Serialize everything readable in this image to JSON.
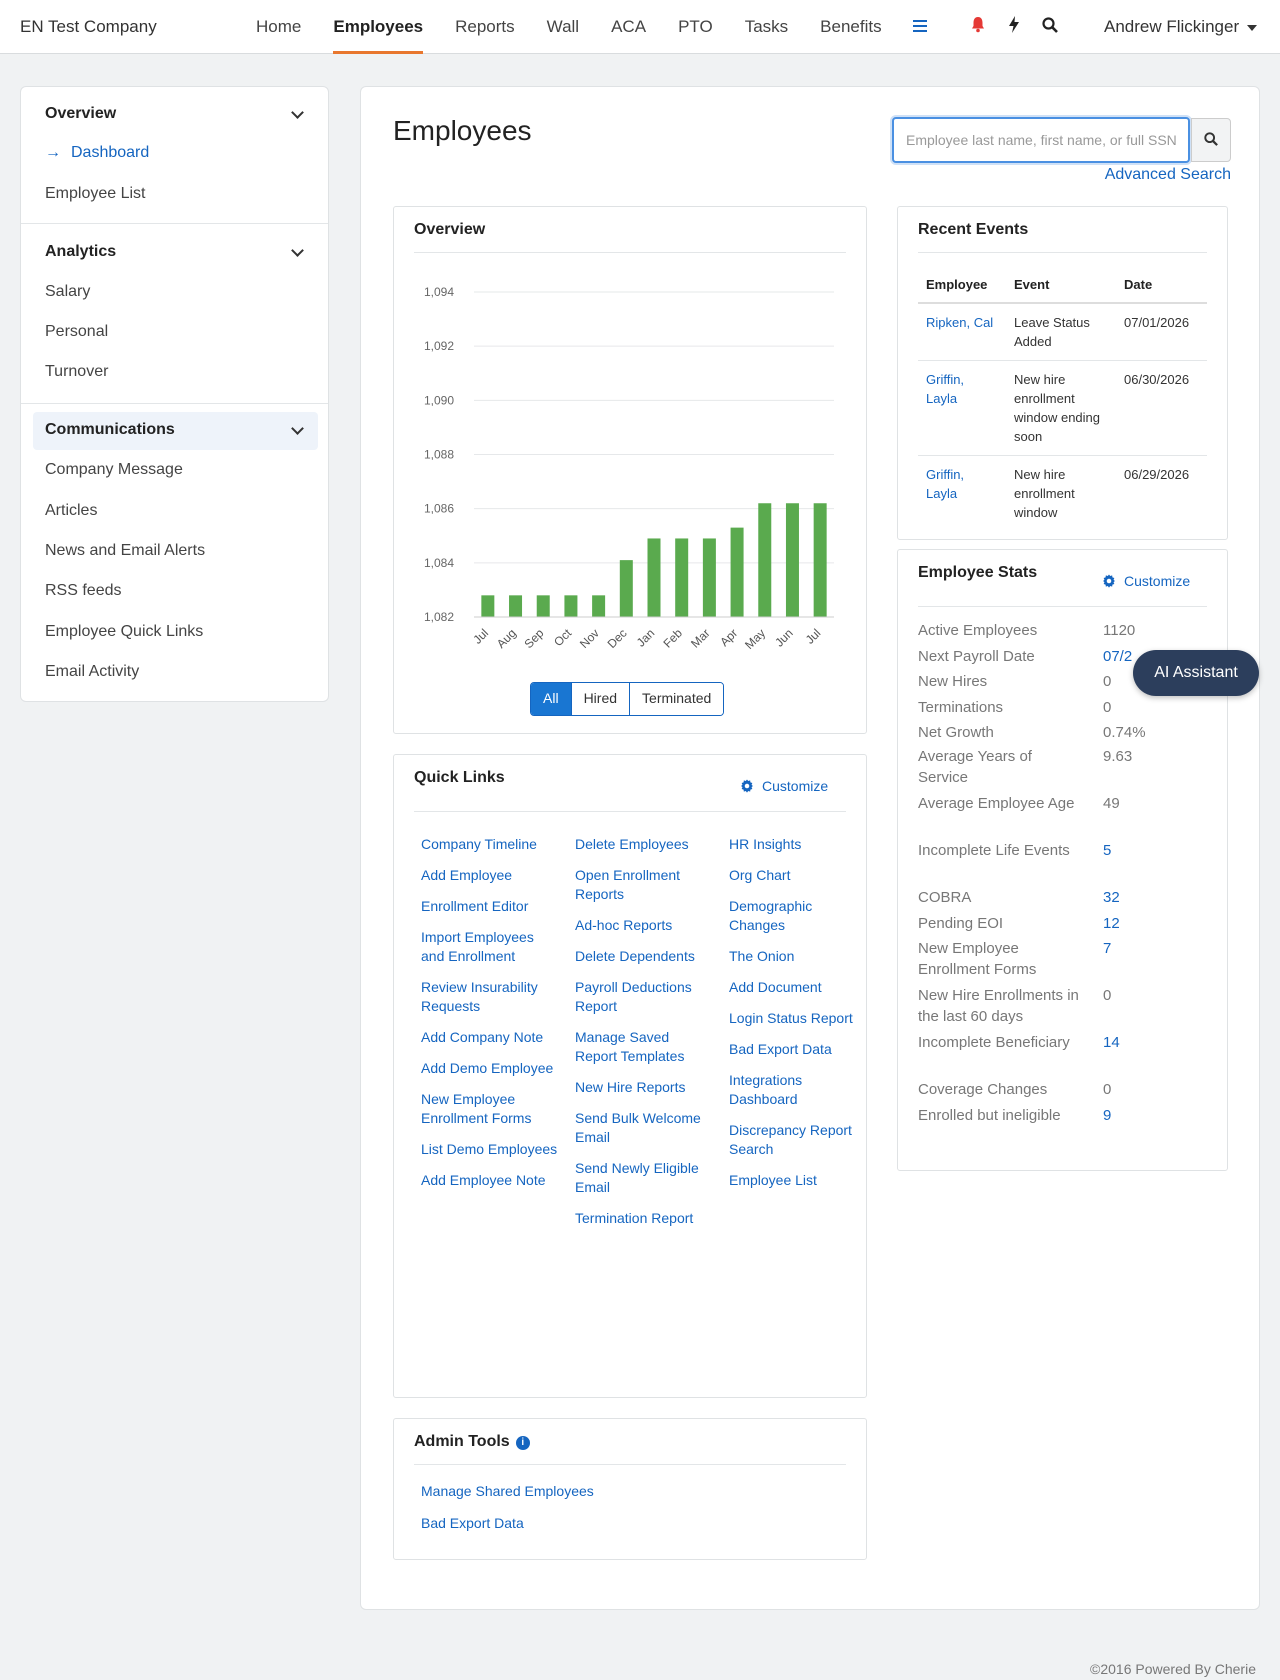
{
  "topnav": {
    "brand": "EN Test Company",
    "links": [
      "Home",
      "Employees",
      "Reports",
      "Wall",
      "ACA",
      "PTO",
      "Tasks",
      "Benefits"
    ],
    "active": "Employees",
    "menu_icon": "hamburger-icon",
    "icons": [
      "bell-icon",
      "bolt-icon",
      "search-icon"
    ],
    "user": "Andrew Flickinger"
  },
  "sidebar": {
    "sections": [
      {
        "title": "Overview",
        "items": [
          "Dashboard",
          "Employee List"
        ]
      },
      {
        "title": "Analytics",
        "items": [
          "Salary",
          "Personal",
          "Turnover"
        ]
      },
      {
        "title": "Communications",
        "items": [
          "Company Message",
          "Articles",
          "News and Email Alerts",
          "RSS feeds",
          "Employee Quick Links",
          "Email Activity"
        ]
      }
    ],
    "current_item": "Dashboard"
  },
  "page": {
    "title": "Employees",
    "search_placeholder": "Employee last name, first name, or full SSN",
    "advanced_search": "Advanced Search"
  },
  "overview_card": {
    "title": "Overview",
    "toggles": [
      "All",
      "Hired",
      "Terminated"
    ],
    "active_toggle": "All"
  },
  "chart_data": {
    "type": "bar",
    "categories": [
      "Jul",
      "Aug",
      "Sep",
      "Oct",
      "Nov",
      "Dec",
      "Jan",
      "Feb",
      "Mar",
      "Apr",
      "May",
      "Jun",
      "Jul"
    ],
    "values": [
      1082.8,
      1082.8,
      1082.8,
      1082.8,
      1082.8,
      1084.1,
      1084.9,
      1084.9,
      1084.9,
      1085.3,
      1086.2,
      1086.2,
      1086.2
    ],
    "yticks": [
      "1,082",
      "1,084",
      "1,086",
      "1,088",
      "1,090",
      "1,092",
      "1,094"
    ],
    "ylim": [
      1082,
      1094
    ],
    "bar_color": "#5aaa4e",
    "grid": true
  },
  "quick_links": {
    "title": "Quick Links",
    "customize": "Customize",
    "columns": [
      [
        "Company Timeline",
        "Add Employee",
        "Enrollment Editor",
        "Import Employees and Enrollment",
        "Review Insurability Requests",
        "Add Company Note",
        "Add Demo Employee",
        "New Employee Enrollment Forms",
        "List Demo Employees",
        "Add Employee Note"
      ],
      [
        "Delete Employees",
        "Open Enrollment Reports",
        "Ad-hoc Reports",
        "Delete Dependents",
        "Payroll Deductions Report",
        "Manage Saved Report Templates",
        "New Hire Reports",
        "Send Bulk Welcome Email",
        "Send Newly Eligible Email",
        "Termination Report"
      ],
      [
        "HR Insights",
        "Org Chart",
        "Demographic Changes",
        "The Onion",
        "Add Document",
        "Login Status Report",
        "Bad Export Data",
        "Integrations Dashboard",
        "Discrepancy Report Search",
        "Employee List"
      ]
    ]
  },
  "admin_tools": {
    "title": "Admin Tools",
    "links": [
      "Manage Shared Employees",
      "Bad Export Data"
    ]
  },
  "recent_events": {
    "title": "Recent Events",
    "headers": [
      "Employee",
      "Event",
      "Date"
    ],
    "rows": [
      {
        "employee": "Ripken, Cal",
        "event": "Leave Status Added",
        "date": "07/01/2026"
      },
      {
        "employee": "Griffin, Layla",
        "event": "New hire enrollment window ending soon",
        "date": "06/30/2026"
      },
      {
        "employee": "Griffin, Layla",
        "event": "New hire enrollment window",
        "date": "06/29/2026"
      }
    ]
  },
  "employee_stats": {
    "title": "Employee Stats",
    "customize": "Customize",
    "rows": [
      {
        "label": "Active Employees",
        "value": "1120",
        "link": false
      },
      {
        "label": "Next Payroll Date",
        "value": "07/2",
        "link": true
      },
      {
        "label": "New Hires",
        "value": "0",
        "link": false
      },
      {
        "label": "Terminations",
        "value": "0",
        "link": false
      },
      {
        "label": "Net Growth",
        "value": "0.74%",
        "link": false
      },
      {
        "label": "Average Years of Service",
        "value": "9.63",
        "link": false
      },
      {
        "label": "Average Employee Age",
        "value": "49",
        "link": false
      },
      {
        "label": "Incomplete Life Events",
        "value": "5",
        "link": true
      },
      {
        "label": "COBRA",
        "value": "32",
        "link": true
      },
      {
        "label": "Pending EOI",
        "value": "12",
        "link": true
      },
      {
        "label": "New Employee Enrollment Forms",
        "value": "7",
        "link": true
      },
      {
        "label": "New Hire Enrollments in the last 60 days",
        "value": "0",
        "link": false
      },
      {
        "label": "Incomplete Beneficiary",
        "value": "14",
        "link": true
      },
      {
        "label": "Coverage Changes",
        "value": "0",
        "link": false
      },
      {
        "label": "Enrolled but ineligible",
        "value": "9",
        "link": true
      }
    ]
  },
  "ai_assistant": "AI Assistant",
  "footer": "©2016 Powered By Cherie",
  "colors": {
    "accent": "#1565c0",
    "nav_underline": "#e8772e",
    "bar": "#5aaa4e",
    "ai_button": "#2c3e5c"
  }
}
